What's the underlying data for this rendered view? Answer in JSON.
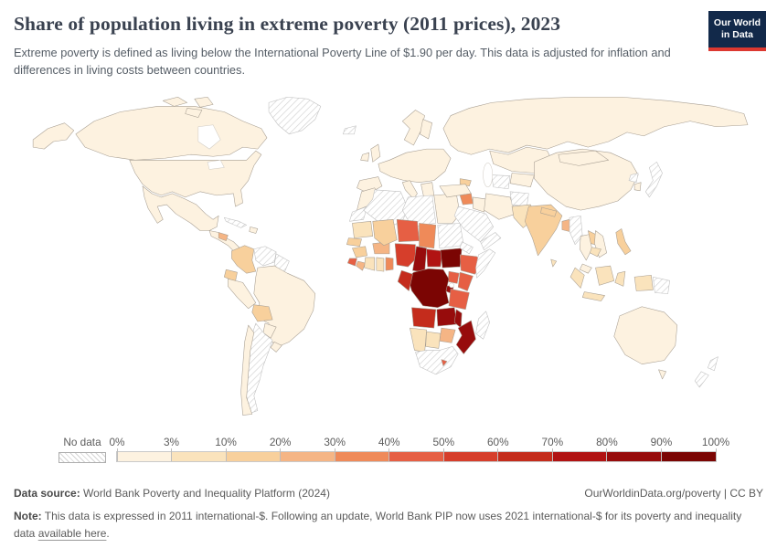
{
  "header": {
    "title": "Share of population living in extreme poverty (2011 prices), 2023",
    "subtitle": "Extreme poverty is defined as living below the International Poverty Line of $1.90 per day. This data is adjusted for inflation and differences in living costs between countries.",
    "logo": {
      "line1": "Our World",
      "line2": "in Data",
      "bg_color": "#12294a",
      "accent_color": "#dc3830"
    }
  },
  "legend": {
    "no_data_label": "No data",
    "tick_labels": [
      "0%",
      "3%",
      "10%",
      "20%",
      "30%",
      "40%",
      "50%",
      "60%",
      "70%",
      "80%",
      "90%",
      "100%"
    ],
    "bin_colors": [
      "#FDF2E0",
      "#FAE3BC",
      "#F8D09C",
      "#F5B585",
      "#EF8A59",
      "#E65F44",
      "#D63E2B",
      "#C42C1C",
      "#B11313",
      "#970C0C",
      "#7B0503"
    ]
  },
  "footer": {
    "source_label": "Data source:",
    "source_text": " World Bank Poverty and Inequality Platform (2024)",
    "attribution": "OurWorldinData.org/poverty | CC BY",
    "note_label": "Note:",
    "note_text": " This data is expressed in 2011 international-$. Following an update, World Bank PIP now uses 2021 international-$ for its poverty and inequality data ",
    "note_link_text": "available here",
    "note_suffix": "."
  },
  "chart_data": {
    "type": "choropleth",
    "title": "Share of population living in extreme poverty (2011 prices), 2023",
    "unit": "share of population",
    "year": "2023",
    "legend_bin_edges_percent": [
      0,
      3,
      10,
      20,
      30,
      40,
      50,
      60,
      70,
      80,
      90,
      100
    ],
    "no_data_style": "diagonal-hatch",
    "region_bins": {
      "alaska": 0,
      "canada": 0,
      "canadian-arctic-a": 0,
      "canadian-arctic-b": 0,
      "canadian-arctic-c": 0,
      "united-states": 0,
      "mexico": 0,
      "central-america": 0,
      "honduras": 3,
      "cuba": "no-data",
      "hispaniola": 0,
      "greenland": "no-data",
      "iceland": "no-data",
      "colombia": 2,
      "venezuela": "no-data",
      "guyanas": "no-data",
      "ecuador": 2,
      "peru": 0,
      "brazil": 0,
      "bolivia": 2,
      "paraguay": 0,
      "uruguay": 0,
      "argentina": "no-data",
      "chile": 0,
      "united-kingdom": 0,
      "ireland": 0,
      "scandinavia": 0,
      "finland": 0,
      "europe-mainland": 0,
      "iberia": 0,
      "italy": 0,
      "balkans": 0,
      "morocco": 0,
      "western-sahara": "no-data",
      "algeria": "no-data",
      "libya": "no-data",
      "egypt": 0,
      "mauritania": 1,
      "senegal": 2,
      "guinea": 2,
      "sierra-leone": 5,
      "liberia": 3,
      "ivory-coast": 1,
      "ghana": 1,
      "togo-benin": 4,
      "burkina-faso": 3,
      "mali": 2,
      "niger": 5,
      "chad": 4,
      "sudan": "no-data",
      "nigeria": 6,
      "cameroon": 9,
      "central-african-republic": 8,
      "south-sudan": 10,
      "eritrea-djibouti": "no-data",
      "ethiopia": 5,
      "somalia": "no-data",
      "kenya": 5,
      "uganda": 5,
      "rwanda-burundi": 9,
      "dr-congo": 10,
      "congo-gabon": 7,
      "tanzania": 5,
      "angola": 7,
      "zambia": 9,
      "malawi": 9,
      "mozambique": 9,
      "zimbabwe": 3,
      "botswana": 1,
      "namibia": 1,
      "south-africa": "no-data",
      "lesotho": 5,
      "madagascar": "no-data",
      "russia": 0,
      "kazakhstan": 0,
      "central-asia": 0,
      "turkmenistan": "no-data",
      "caucasus": 2,
      "turkey": 0,
      "syria": 4,
      "iraq": 0,
      "iran": 0,
      "saudi-arabia": "no-data",
      "yemen-oman": "no-data",
      "afghanistan": "no-data",
      "pakistan": 1,
      "india": 2,
      "nepal": 2,
      "bangladesh": 3,
      "sri-lanka": 1,
      "myanmar": "no-data",
      "china": 0,
      "mongolia": 0,
      "north-korea": "no-data",
      "south-korea": 0,
      "japan": "no-data",
      "thailand": 0,
      "laos": 2,
      "vietnam": 0,
      "cambodia": 1,
      "malaysia": 0,
      "philippines": 2,
      "sumatra": 1,
      "java": 1,
      "borneo": 1,
      "sulawesi": 1,
      "west-papua": 1,
      "papua-new-guinea": "no-data",
      "australia": 0,
      "tasmania": 0,
      "new-zealand": "no-data"
    }
  }
}
